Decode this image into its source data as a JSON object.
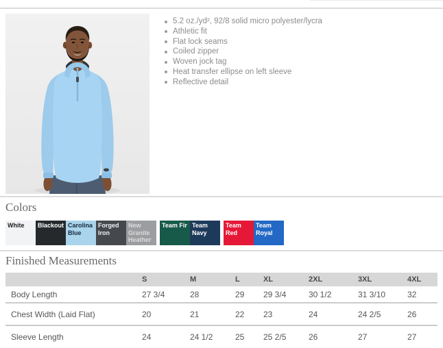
{
  "features": {
    "items": [
      "5.2 oz./yd², 92/8 solid micro polyester/lycra",
      "Athletic fit",
      "Flat lock seams",
      "Coiled zipper",
      "Woven jock tag",
      "Heat transfer ellipse on left sleeve",
      "Reflective detail"
    ]
  },
  "colors": {
    "heading": "Colors",
    "swatches": [
      {
        "label": "White",
        "bg": "#f2f3f5",
        "fg": "#1b1b1b",
        "gap_before": false
      },
      {
        "label": "Blackout",
        "bg": "#26292b",
        "fg": "#ffffff",
        "gap_before": false
      },
      {
        "label": "Carolina Blue",
        "bg": "#a9d4ec",
        "fg": "#16293a",
        "gap_before": false
      },
      {
        "label": "Forged Iron",
        "bg": "#45484d",
        "fg": "#f2f2f2",
        "gap_before": false
      },
      {
        "label": "New Granite Heather",
        "bg": "#9b9da0",
        "fg": "#dcdcdc",
        "gap_before": false
      },
      {
        "label": "Team Fir",
        "bg": "#175a49",
        "fg": "#ffffff",
        "gap_before": true
      },
      {
        "label": "Team Navy",
        "bg": "#1e3a5b",
        "fg": "#ffffff",
        "gap_before": false
      },
      {
        "label": "Team Red",
        "bg": "#e51937",
        "fg": "#ffffff",
        "gap_before": true
      },
      {
        "label": "Team Royal",
        "bg": "#2268c4",
        "fg": "#ffffff",
        "gap_before": false
      }
    ]
  },
  "measurements": {
    "heading": "Finished Measurements",
    "sizes": [
      "S",
      "M",
      "L",
      "XL",
      "2XL",
      "3XL",
      "4XL"
    ],
    "rows": [
      {
        "label": "Body Length",
        "values": [
          "27 3/4",
          "28",
          "29",
          "29 3/4",
          "30 1/2",
          "31 3/10",
          "32"
        ]
      },
      {
        "label": "Chest Width (Laid Flat)",
        "values": [
          "20",
          "21",
          "22",
          "23",
          "24",
          "24 2/5",
          "26"
        ]
      },
      {
        "label": "Sleeve Length",
        "values": [
          "24",
          "24 1/2",
          "25",
          "25 2/5",
          "26",
          "27",
          "27"
        ]
      }
    ]
  }
}
